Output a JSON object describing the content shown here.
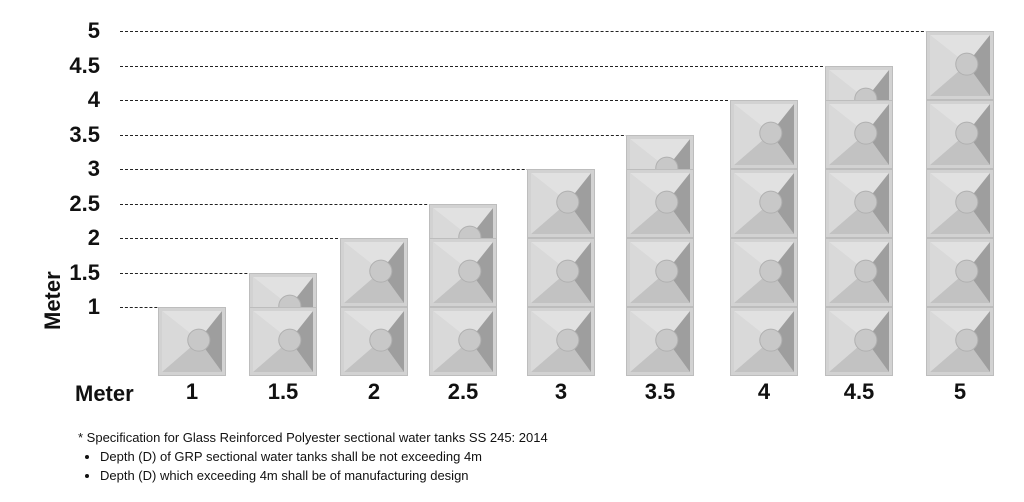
{
  "chart_data": {
    "type": "diagram",
    "y_label": "Meter",
    "x_label": "Meter",
    "y_ticks": [
      "1",
      "1.5",
      "2",
      "2.5",
      "3",
      "3.5",
      "4",
      "4.5",
      "5"
    ],
    "x_ticks": [
      "1",
      "1.5",
      "2",
      "2.5",
      "3",
      "3.5",
      "4",
      "4.5",
      "5"
    ],
    "tank_heights": [
      1,
      1.5,
      2,
      2.5,
      3,
      3.5,
      4,
      4.5,
      5
    ],
    "panel_color": "#cfcfcf"
  },
  "notes": {
    "heading": "* Specification for Glass Reinforced Polyester sectional water tanks SS 245: 2014",
    "items": [
      "Depth (D) of GRP sectional water tanks shall be not exceeding 4m",
      "Depth (D) which exceeding 4m shall be of manufacturing design"
    ]
  }
}
